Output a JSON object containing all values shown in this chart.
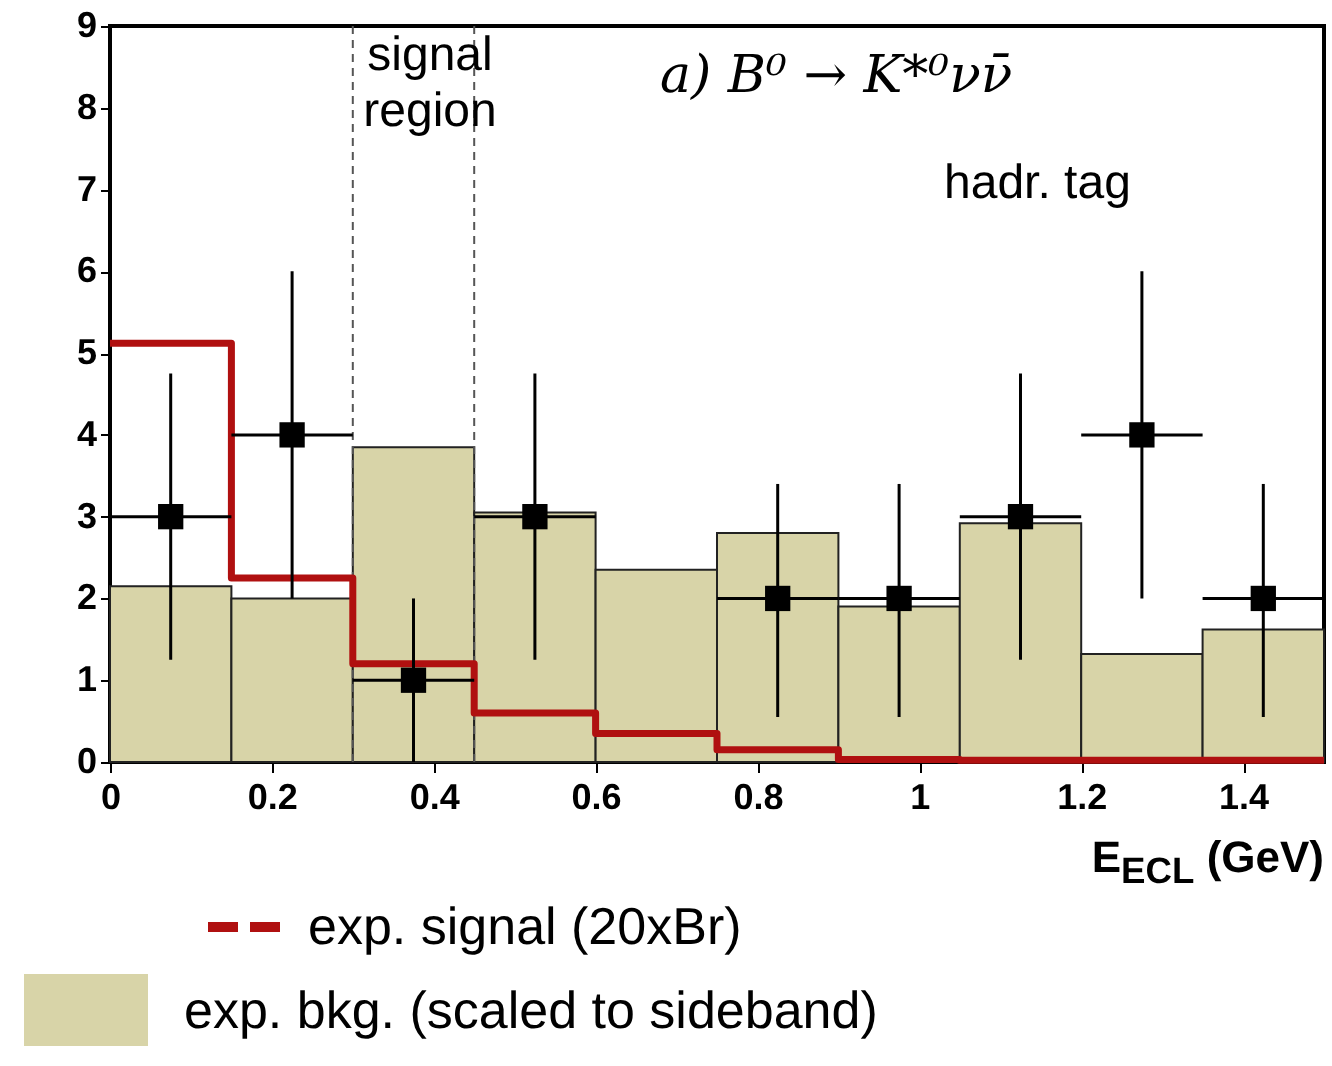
{
  "chart_data": {
    "type": "histogram",
    "xlabel": "E$_{ECL}$ (GeV)",
    "bins": [
      0,
      0.15,
      0.3,
      0.45,
      0.6,
      0.75,
      0.9,
      1.05,
      1.2,
      1.35,
      1.5
    ],
    "series": [
      {
        "name": "exp. bkg. (scaled to sideband)",
        "color": "#d8d4a8",
        "values": [
          2.15,
          2.0,
          3.85,
          3.05,
          2.35,
          2.8,
          1.9,
          2.92,
          1.32,
          1.62
        ]
      },
      {
        "name": "exp. signal (20xBr)",
        "type": "step",
        "color": "#b01010",
        "x": [
          0,
          0.15,
          0.3,
          0.45,
          0.6,
          0.75,
          0.9,
          1.05,
          1.2,
          1.35,
          1.5
        ],
        "values": [
          5.12,
          2.25,
          1.2,
          0.6,
          0.35,
          0.15,
          0.03,
          0.02,
          0.02,
          0.02,
          0.02
        ]
      },
      {
        "type": "scatter",
        "color": "#000000",
        "marker": "square",
        "x": [
          0.075,
          0.225,
          0.375,
          0.525,
          0.825,
          0.975,
          1.125,
          1.275,
          1.425
        ],
        "values": [
          3,
          4,
          1,
          3,
          2,
          2,
          3,
          4,
          2
        ],
        "errors": [
          [
            1.25,
            4.75
          ],
          [
            2,
            6
          ],
          [
            0,
            2
          ],
          [
            1.25,
            4.75
          ],
          [
            0.55,
            3.4
          ],
          [
            0.55,
            3.4
          ],
          [
            1.25,
            4.75
          ],
          [
            2,
            6
          ],
          [
            0.55,
            3.4
          ]
        ],
        "xerrors": [
          0.075,
          0.075,
          0.075,
          0.075,
          0.075,
          0.075,
          0.075,
          0.075,
          0.075
        ]
      }
    ],
    "ref_lines": [
      {
        "axis": "x",
        "value": 0.3,
        "line_style": "dashed"
      },
      {
        "axis": "x",
        "value": 0.45,
        "line_style": "dashed"
      }
    ],
    "annotations": [
      "signal region",
      "a) B⁰ → K*⁰νν̄",
      "hadr. tag"
    ],
    "xlim": [
      0,
      1.5
    ],
    "xticks": [
      0,
      0.2,
      0.4,
      0.6,
      0.8,
      1,
      1.2,
      1.4
    ],
    "ylim": [
      0,
      9
    ],
    "yticks": [
      0,
      1,
      2,
      3,
      4,
      5,
      6,
      7,
      8,
      9
    ],
    "legend": "bottom"
  }
}
